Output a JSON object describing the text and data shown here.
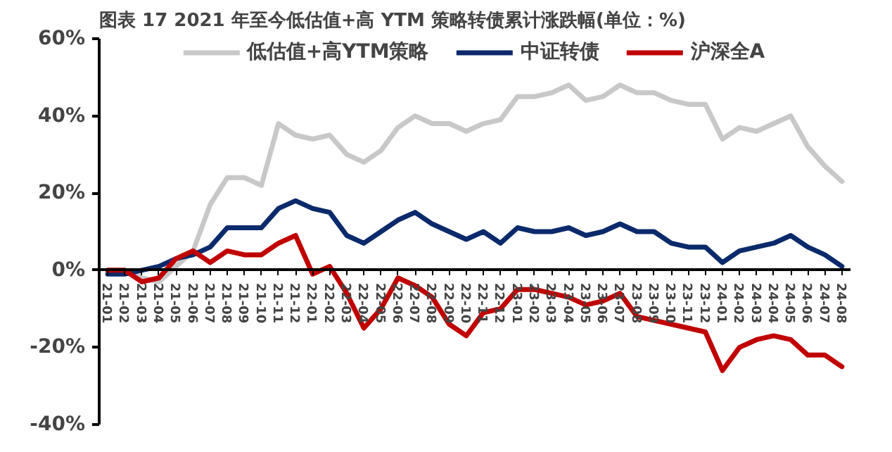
{
  "chart_data": {
    "type": "line",
    "title": "图表 17 2021 年至今低估值+高 YTM 策略转债累计涨跌幅(单位：%)",
    "categories": [
      "21-01",
      "21-02",
      "21-03",
      "21-04",
      "21-05",
      "21-06",
      "21-07",
      "21-08",
      "21-09",
      "21-10",
      "21-11",
      "21-12",
      "22-01",
      "22-02",
      "22-03",
      "22-04",
      "22-05",
      "22-06",
      "22-07",
      "22-08",
      "22-09",
      "22-10",
      "22-11",
      "22-12",
      "23-01",
      "23-02",
      "23-03",
      "23-04",
      "23-05",
      "23-06",
      "23-07",
      "23-08",
      "23-09",
      "23-10",
      "23-11",
      "23-12",
      "24-01",
      "24-02",
      "24-03",
      "24-04",
      "24-05",
      "24-06",
      "24-07",
      "24-08"
    ],
    "series": [
      {
        "name": "低估值+高YTM策略",
        "color": "#c8c8c8",
        "values": [
          0,
          0,
          -2,
          -3,
          1,
          5,
          17,
          24,
          24,
          22,
          38,
          35,
          34,
          35,
          30,
          28,
          31,
          37,
          40,
          38,
          38,
          36,
          38,
          39,
          45,
          45,
          46,
          48,
          44,
          45,
          48,
          46,
          46,
          44,
          43,
          43,
          34,
          37,
          36,
          38,
          40,
          32,
          27,
          23
        ]
      },
      {
        "name": "中证转债",
        "color": "#0b2a6b",
        "values": [
          -1,
          -1,
          0,
          1,
          3,
          4,
          6,
          11,
          11,
          11,
          16,
          18,
          16,
          15,
          9,
          7,
          10,
          13,
          15,
          12,
          10,
          8,
          10,
          7,
          11,
          10,
          10,
          11,
          9,
          10,
          12,
          10,
          10,
          7,
          6,
          6,
          2,
          5,
          6,
          7,
          9,
          6,
          4,
          1
        ]
      },
      {
        "name": "沪深全A",
        "color": "#c00000",
        "values": [
          0,
          0,
          -3,
          -2,
          3,
          5,
          2,
          5,
          4,
          4,
          7,
          9,
          -1,
          1,
          -6,
          -15,
          -10,
          -2,
          -4,
          -7,
          -14,
          -17,
          -11,
          -10,
          -5,
          -5,
          -6,
          -7,
          -9,
          -8,
          -6,
          -12,
          -13,
          -14,
          -15,
          -16,
          -26,
          -20,
          -18,
          -17,
          -18,
          -22,
          -22,
          -25
        ]
      }
    ],
    "ylim": [
      -40,
      60
    ],
    "yticks": [
      {
        "value": -40,
        "label": "-40%"
      },
      {
        "value": -20,
        "label": "-20%"
      },
      {
        "value": 0,
        "label": "0%"
      },
      {
        "value": 20,
        "label": "20%"
      },
      {
        "value": 40,
        "label": "40%"
      },
      {
        "value": 60,
        "label": "60%"
      }
    ],
    "grid": false,
    "legend": "top",
    "marker": "none",
    "line_style": "solid"
  }
}
